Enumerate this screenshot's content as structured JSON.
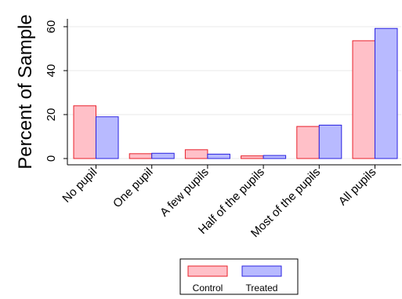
{
  "chart_data": {
    "type": "bar",
    "title": "",
    "xlabel": "",
    "ylabel": "Percent of Sample",
    "ylim": [
      0,
      60
    ],
    "yticks": [
      0,
      20,
      40,
      60
    ],
    "grid": true,
    "legend_position": "bottom",
    "categories": [
      "No pupil",
      "One pupil",
      "A few pupils",
      "Half of the pupils",
      "Most of the pupils",
      "All pupils"
    ],
    "series": [
      {
        "name": "Control",
        "fill": "#ffc0c8",
        "stroke": "#e8202a",
        "values": [
          24,
          2.2,
          4,
          1.2,
          14.6,
          53.6
        ]
      },
      {
        "name": "Treated",
        "fill": "#b8baff",
        "stroke": "#2a22e0",
        "values": [
          19,
          2.4,
          2,
          1.4,
          15.2,
          59.2
        ]
      }
    ]
  }
}
